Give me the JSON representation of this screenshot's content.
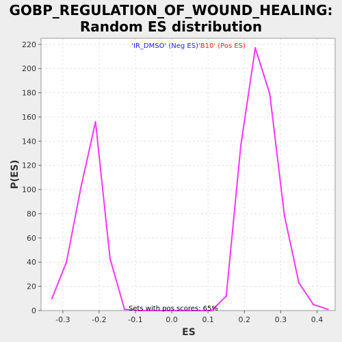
{
  "chart_data": {
    "type": "line",
    "title_line1": "GOBP_REGULATION_OF_WOUND_HEALING:",
    "title_line2": "Random ES distribution",
    "xlabel": "ES",
    "ylabel": "P(ES)",
    "xlim": [
      -0.36,
      0.45
    ],
    "ylim": [
      0,
      225
    ],
    "xticks": [
      -0.3,
      -0.2,
      -0.1,
      0.0,
      0.1,
      0.2,
      0.3,
      0.4
    ],
    "xtick_labels": [
      "-0.3",
      "-0.2",
      "-0.1",
      "0.0",
      "0.1",
      "0.2",
      "0.3",
      "0.4"
    ],
    "yticks": [
      0,
      20,
      40,
      60,
      80,
      100,
      120,
      140,
      160,
      180,
      200,
      220
    ],
    "ytick_labels": [
      "0",
      "20",
      "40",
      "60",
      "80",
      "100",
      "120",
      "140",
      "160",
      "180",
      "200",
      "220"
    ],
    "grid": true,
    "series": [
      {
        "color": "#ff33ff",
        "x": [
          -0.33,
          -0.29,
          -0.25,
          -0.21,
          -0.17,
          -0.13,
          -0.09,
          0.11,
          0.15,
          0.19,
          0.23,
          0.27,
          0.31,
          0.35,
          0.39,
          0.43
        ],
        "y": [
          10,
          40,
          102,
          156,
          43,
          1,
          0,
          0,
          12,
          136,
          217,
          179,
          79,
          23,
          5,
          1
        ]
      }
    ],
    "legend_neg": "'IR_DMSO' (Neg ES)",
    "legend_pos": "'B10' (Pos ES)",
    "legend_neg_color": "#2222ff",
    "legend_pos_color": "#ff2222",
    "annotation": "Sets with pos scores: 65%"
  }
}
